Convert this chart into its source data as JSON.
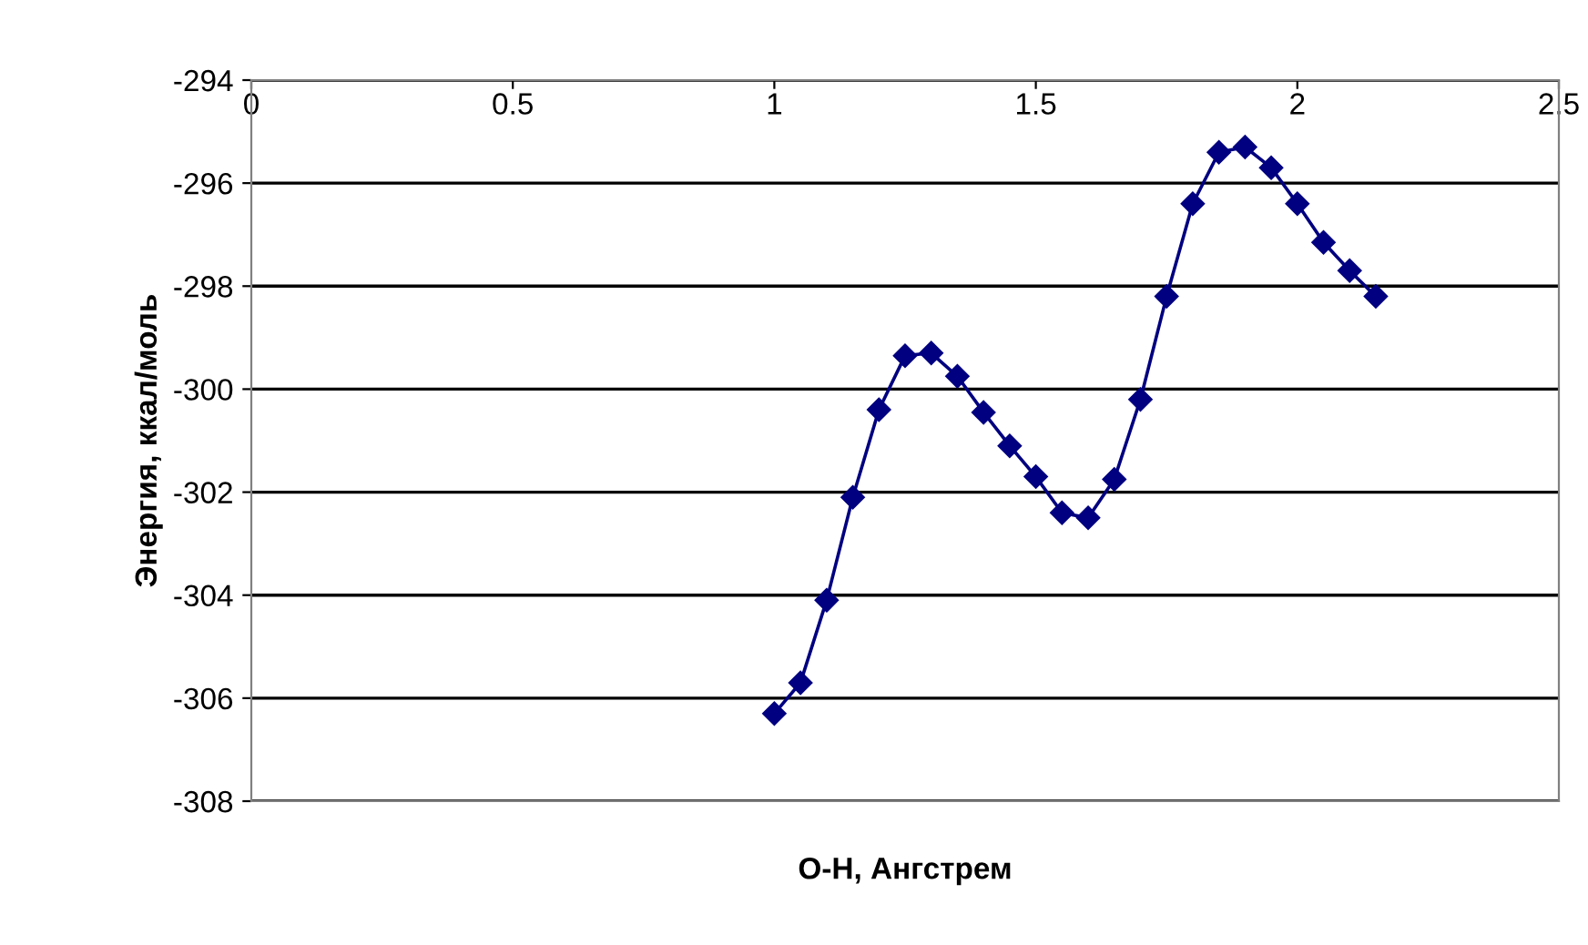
{
  "chart_data": {
    "type": "line",
    "xlabel": "O-H, Ангстрем",
    "ylabel": "Энергия, ккал/моль",
    "xlim": [
      0,
      2.5
    ],
    "xticks": [
      0,
      0.5,
      1,
      1.5,
      2,
      2.5
    ],
    "ylim": [
      -308,
      -294
    ],
    "yticks": [
      -308,
      -306,
      -304,
      -302,
      -300,
      -298,
      -296,
      -294
    ],
    "grid": "y",
    "marker": "diamond",
    "series": [
      {
        "color": "#000080",
        "x": [
          1.0,
          1.05,
          1.1,
          1.15,
          1.2,
          1.25,
          1.3,
          1.35,
          1.4,
          1.45,
          1.5,
          1.55,
          1.6,
          1.65,
          1.7,
          1.75,
          1.8,
          1.85,
          1.9,
          1.95,
          2.0,
          2.05,
          2.1,
          2.15
        ],
        "values": [
          -306.3,
          -305.7,
          -304.1,
          -302.1,
          -300.4,
          -299.35,
          -299.3,
          -299.75,
          -300.45,
          -301.1,
          -301.7,
          -302.4,
          -302.5,
          -301.75,
          -300.2,
          -298.2,
          -296.4,
          -295.4,
          -295.3,
          -295.7,
          -296.4,
          -297.15,
          -297.7,
          -298.2
        ]
      }
    ]
  }
}
